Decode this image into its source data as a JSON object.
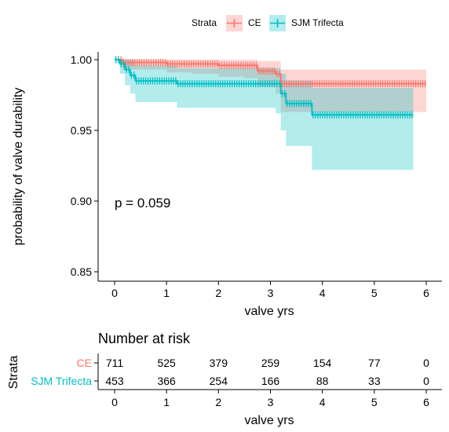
{
  "chart_data": [
    {
      "type": "line",
      "subtype": "kaplan-meier",
      "title": "",
      "xlabel": "valve yrs",
      "ylabel": "probability of valve durability",
      "xlim": [
        0,
        6
      ],
      "ylim": [
        0.85,
        1.0
      ],
      "x_ticks": [
        "0",
        "1",
        "2",
        "3",
        "4",
        "5",
        "6"
      ],
      "y_ticks": [
        "0.85",
        "0.90",
        "0.95",
        "1.00"
      ],
      "legend": {
        "title": "Strata",
        "position": "top"
      },
      "annotation": "p = 0.059",
      "grid": false,
      "series": [
        {
          "name": "CE",
          "color": "#F8766D",
          "fill": "#F8766D",
          "x": [
            0,
            0.15,
            0.5,
            1.0,
            1.5,
            2.0,
            2.5,
            2.75,
            3.1,
            3.2,
            6.0
          ],
          "y": [
            1.0,
            0.998,
            0.998,
            0.997,
            0.997,
            0.996,
            0.996,
            0.992,
            0.99,
            0.983,
            0.983
          ],
          "ci_lower": [
            1.0,
            0.993,
            0.993,
            0.991,
            0.99,
            0.988,
            0.987,
            0.981,
            0.976,
            0.963,
            0.963
          ],
          "ci_upper": [
            1.0,
            1.0,
            1.0,
            1.0,
            1.0,
            1.0,
            1.0,
            0.999,
            0.999,
            0.993,
            0.993
          ]
        },
        {
          "name": "SJM Trifecta",
          "color": "#00BFC4",
          "fill": "#00BFC4",
          "x": [
            0,
            0.1,
            0.2,
            0.3,
            0.4,
            1.2,
            3.1,
            3.2,
            3.3,
            3.8,
            5.75
          ],
          "y": [
            1.0,
            0.997,
            0.993,
            0.989,
            0.985,
            0.983,
            0.983,
            0.976,
            0.969,
            0.961,
            0.961
          ],
          "ci_lower": [
            1.0,
            0.99,
            0.982,
            0.976,
            0.97,
            0.966,
            0.962,
            0.95,
            0.939,
            0.922,
            0.922
          ],
          "ci_upper": [
            1.0,
            1.0,
            1.0,
            1.0,
            0.996,
            0.994,
            0.994,
            0.99,
            0.985,
            0.98,
            0.98
          ]
        }
      ]
    },
    {
      "type": "table",
      "title": "Number at risk",
      "ylabel": "Strata",
      "xlabel": "valve yrs",
      "x_ticks": [
        "0",
        "1",
        "2",
        "3",
        "4",
        "5",
        "6"
      ],
      "rows": [
        {
          "name": "CE",
          "color": "#F8766D",
          "values": [
            "711",
            "525",
            "379",
            "259",
            "154",
            "77",
            "0"
          ]
        },
        {
          "name": "SJM Trifecta",
          "color": "#00BFC4",
          "values": [
            "453",
            "366",
            "254",
            "166",
            "88",
            "33",
            "0"
          ]
        }
      ]
    }
  ]
}
